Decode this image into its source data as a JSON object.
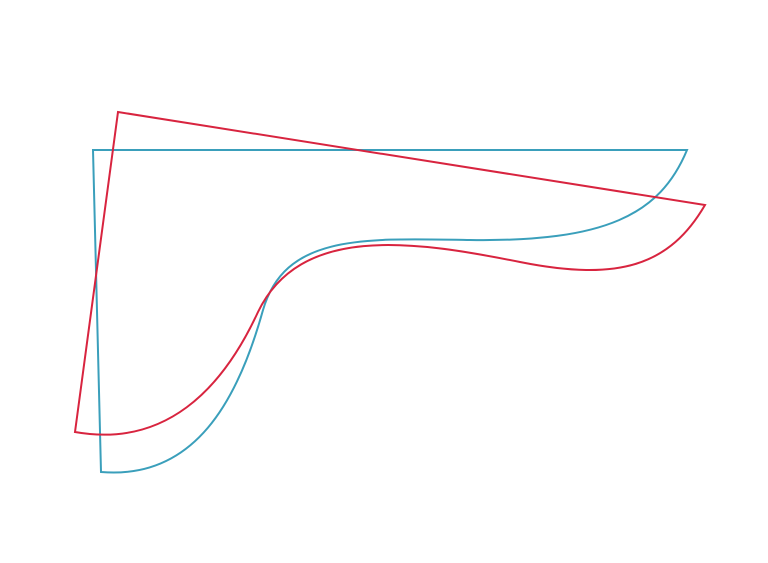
{
  "shapes": [
    {
      "name": "blue-outline-shape",
      "color": "#3a9fbb"
    },
    {
      "name": "red-outline-shape",
      "color": "#d8243f"
    }
  ]
}
